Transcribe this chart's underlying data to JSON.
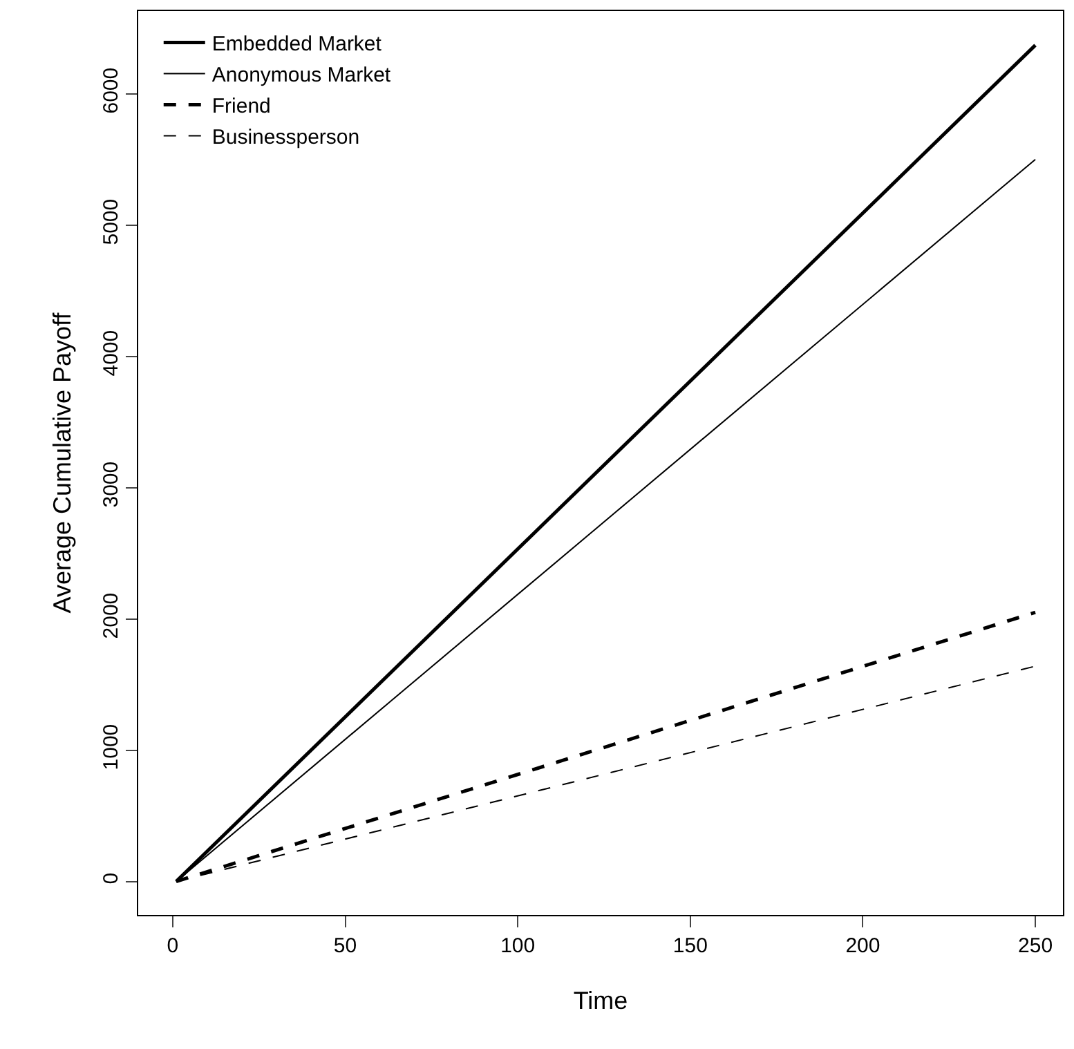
{
  "chart_data": {
    "type": "line",
    "xlabel": "Time",
    "ylabel": "Average Cumulative Payoff",
    "x": [
      1,
      250
    ],
    "series": [
      {
        "name": "Embedded Market",
        "color": "#000000",
        "values": [
          0,
          6370
        ],
        "line_style": "solid"
      },
      {
        "name": "Anonymous Market",
        "color": "#000000",
        "values": [
          0,
          5500
        ],
        "line_style": "solid"
      },
      {
        "name": "Friend",
        "color": "#000000",
        "values": [
          0,
          2050
        ],
        "line_style": "dashed"
      },
      {
        "name": "Businessperson",
        "color": "#000000",
        "values": [
          0,
          1640
        ],
        "line_style": "dashed"
      }
    ],
    "xlim": [
      -10,
      258
    ],
    "xticks": [
      0,
      50,
      100,
      150,
      200,
      250
    ],
    "ylim": [
      -255,
      6630
    ],
    "yticks": [
      0,
      1000,
      2000,
      3000,
      4000,
      5000,
      6000
    ],
    "legend": "top left",
    "marker": "none"
  }
}
